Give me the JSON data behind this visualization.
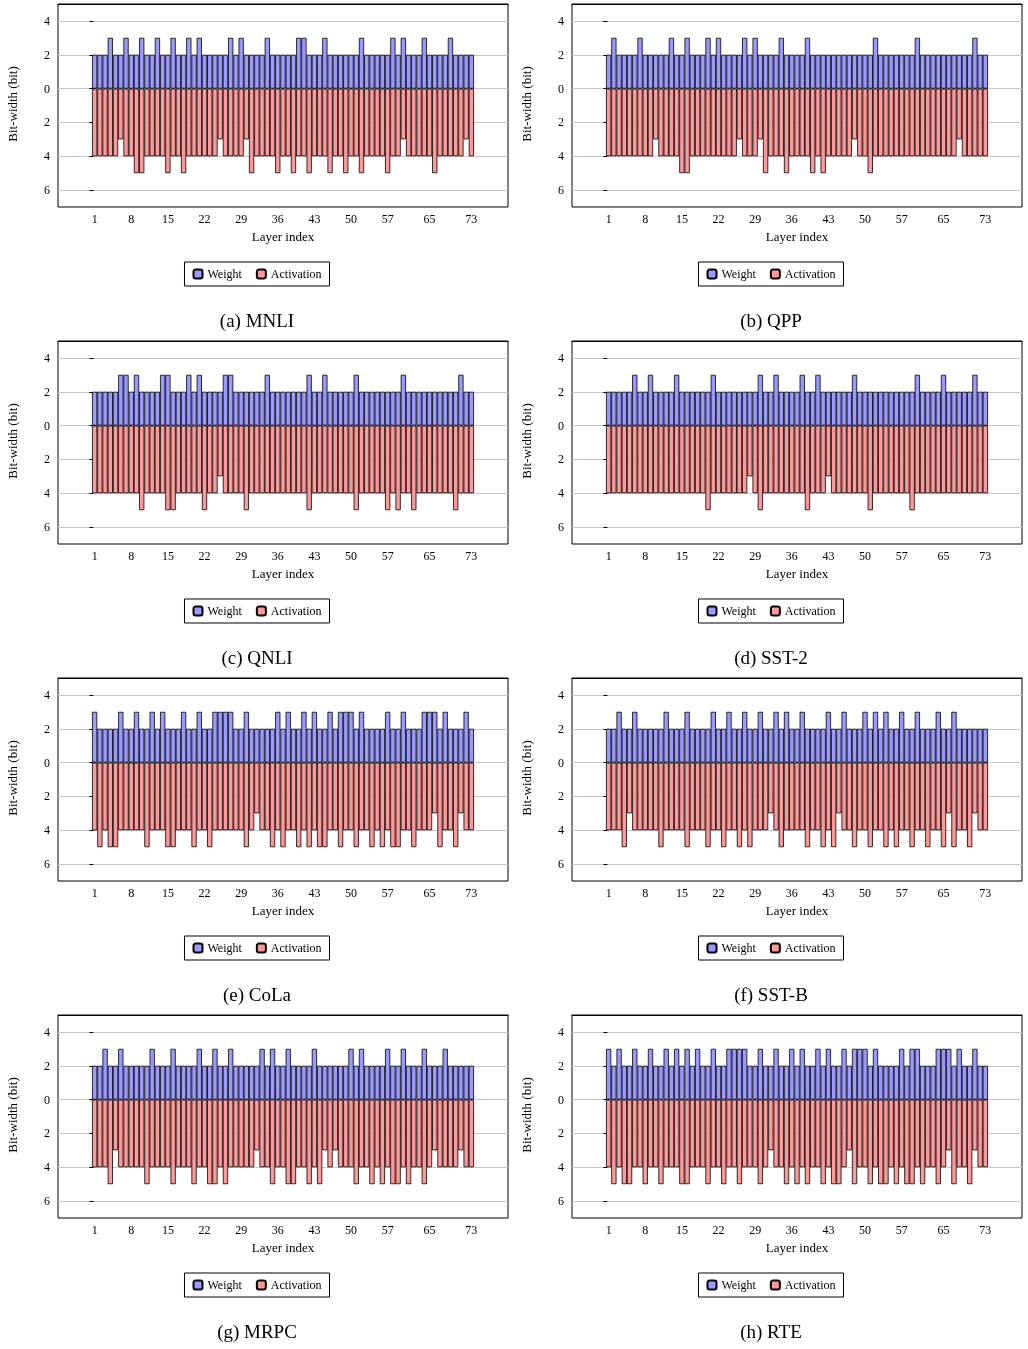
{
  "chart_data": [
    {
      "type": "bar",
      "stacked": true,
      "title": "(a) MNLI",
      "xlabel": "Layer index",
      "ylabel": "Bit-width (bit)",
      "grid": "y",
      "legend": "bottom",
      "x": [
        1,
        2,
        3,
        4,
        5,
        6,
        7,
        8,
        9,
        10,
        11,
        12,
        13,
        14,
        15,
        16,
        17,
        18,
        19,
        20,
        21,
        22,
        23,
        24,
        25,
        26,
        27,
        28,
        29,
        30,
        31,
        32,
        33,
        34,
        35,
        36,
        37,
        38,
        39,
        40,
        41,
        42,
        43,
        44,
        45,
        46,
        47,
        48,
        49,
        50,
        51,
        52,
        53,
        54,
        55,
        56,
        57,
        58,
        59,
        60,
        61,
        62,
        63,
        64,
        65,
        66,
        67,
        68,
        69,
        70,
        71,
        72,
        73
      ],
      "xlim": [
        -6,
        80
      ],
      "xticks": [
        1,
        8,
        15,
        22,
        29,
        36,
        43,
        50,
        57,
        65,
        73
      ],
      "ylim": [
        -7,
        5
      ],
      "yticks": [
        {
          "value": -6,
          "label": "6"
        },
        {
          "value": -4,
          "label": "4"
        },
        {
          "value": -2,
          "label": "2"
        },
        0,
        2,
        4
      ],
      "series": [
        {
          "name": "Weight",
          "color": "#9999ff",
          "values": [
            2,
            2,
            2,
            3,
            2,
            2,
            3,
            2,
            2,
            3,
            2,
            2,
            3,
            2,
            2,
            3,
            2,
            2,
            3,
            2,
            3,
            2,
            2,
            2,
            2,
            2,
            3,
            2,
            3,
            2,
            2,
            2,
            2,
            3,
            2,
            2,
            2,
            2,
            2,
            3,
            3,
            2,
            2,
            2,
            3,
            2,
            2,
            2,
            2,
            2,
            2,
            3,
            2,
            2,
            2,
            2,
            2,
            3,
            2,
            3,
            2,
            2,
            2,
            3,
            2,
            2,
            2,
            2,
            3,
            2,
            2,
            2,
            2
          ]
        },
        {
          "name": "Activation",
          "color": "#ff9999",
          "values": [
            -4,
            -4,
            -4,
            -4,
            -4,
            -3,
            -4,
            -4,
            -5,
            -5,
            -4,
            -4,
            -4,
            -4,
            -5,
            -4,
            -4,
            -5,
            -4,
            -4,
            -4,
            -4,
            -4,
            -4,
            -3,
            -4,
            -4,
            -4,
            -4,
            -3,
            -5,
            -4,
            -4,
            -4,
            -4,
            -5,
            -4,
            -4,
            -5,
            -4,
            -4,
            -5,
            -4,
            -4,
            -4,
            -5,
            -4,
            -4,
            -5,
            -4,
            -4,
            -5,
            -4,
            -4,
            -4,
            -4,
            -5,
            -4,
            -4,
            -3,
            -4,
            -4,
            -4,
            -4,
            -4,
            -5,
            -4,
            -4,
            -4,
            -4,
            -4,
            -3,
            -4
          ]
        }
      ]
    },
    {
      "type": "bar",
      "stacked": true,
      "title": "(b) QPP",
      "xlabel": "Layer index",
      "ylabel": "Bit-width (bit)",
      "grid": "y",
      "legend": "bottom",
      "x": [
        1,
        2,
        3,
        4,
        5,
        6,
        7,
        8,
        9,
        10,
        11,
        12,
        13,
        14,
        15,
        16,
        17,
        18,
        19,
        20,
        21,
        22,
        23,
        24,
        25,
        26,
        27,
        28,
        29,
        30,
        31,
        32,
        33,
        34,
        35,
        36,
        37,
        38,
        39,
        40,
        41,
        42,
        43,
        44,
        45,
        46,
        47,
        48,
        49,
        50,
        51,
        52,
        53,
        54,
        55,
        56,
        57,
        58,
        59,
        60,
        61,
        62,
        63,
        64,
        65,
        66,
        67,
        68,
        69,
        70,
        71,
        72,
        73
      ],
      "xlim": [
        -6,
        80
      ],
      "xticks": [
        1,
        8,
        15,
        22,
        29,
        36,
        43,
        50,
        57,
        65,
        73
      ],
      "ylim": [
        -7,
        5
      ],
      "yticks": [
        {
          "value": -6,
          "label": "6"
        },
        {
          "value": -4,
          "label": "4"
        },
        {
          "value": -2,
          "label": "2"
        },
        0,
        2,
        4
      ],
      "series": [
        {
          "name": "Weight",
          "color": "#9999ff",
          "values": [
            2,
            3,
            2,
            2,
            2,
            2,
            3,
            2,
            2,
            2,
            2,
            2,
            3,
            2,
            2,
            3,
            2,
            2,
            2,
            3,
            2,
            3,
            2,
            2,
            2,
            2,
            3,
            2,
            3,
            2,
            2,
            2,
            2,
            3,
            2,
            2,
            2,
            2,
            3,
            2,
            2,
            2,
            2,
            2,
            2,
            2,
            2,
            2,
            2,
            2,
            2,
            3,
            2,
            2,
            2,
            2,
            2,
            2,
            2,
            3,
            2,
            2,
            2,
            2,
            2,
            2,
            2,
            2,
            2,
            2,
            3,
            2,
            2
          ]
        },
        {
          "name": "Activation",
          "color": "#ff9999",
          "values": [
            -4,
            -4,
            -4,
            -4,
            -4,
            -4,
            -4,
            -4,
            -4,
            -3,
            -4,
            -4,
            -4,
            -4,
            -5,
            -5,
            -4,
            -4,
            -4,
            -4,
            -4,
            -4,
            -4,
            -4,
            -4,
            -3,
            -4,
            -4,
            -4,
            -3,
            -5,
            -4,
            -4,
            -4,
            -5,
            -4,
            -4,
            -4,
            -4,
            -5,
            -4,
            -5,
            -4,
            -4,
            -4,
            -4,
            -4,
            -3,
            -4,
            -4,
            -5,
            -4,
            -4,
            -4,
            -4,
            -4,
            -4,
            -4,
            -4,
            -4,
            -4,
            -4,
            -4,
            -4,
            -4,
            -4,
            -4,
            -3,
            -4,
            -4,
            -4,
            -4,
            -4
          ]
        }
      ]
    },
    {
      "type": "bar",
      "stacked": true,
      "title": "(c) QNLI",
      "xlabel": "Layer index",
      "ylabel": "Bit-width (bit)",
      "grid": "y",
      "legend": "bottom",
      "x": [
        1,
        2,
        3,
        4,
        5,
        6,
        7,
        8,
        9,
        10,
        11,
        12,
        13,
        14,
        15,
        16,
        17,
        18,
        19,
        20,
        21,
        22,
        23,
        24,
        25,
        26,
        27,
        28,
        29,
        30,
        31,
        32,
        33,
        34,
        35,
        36,
        37,
        38,
        39,
        40,
        41,
        42,
        43,
        44,
        45,
        46,
        47,
        48,
        49,
        50,
        51,
        52,
        53,
        54,
        55,
        56,
        57,
        58,
        59,
        60,
        61,
        62,
        63,
        64,
        65,
        66,
        67,
        68,
        69,
        70,
        71,
        72,
        73
      ],
      "xlim": [
        -6,
        80
      ],
      "xticks": [
        1,
        8,
        15,
        22,
        29,
        36,
        43,
        50,
        57,
        65,
        73
      ],
      "ylim": [
        -7,
        5
      ],
      "yticks": [
        {
          "value": -6,
          "label": "6"
        },
        {
          "value": -4,
          "label": "4"
        },
        {
          "value": -2,
          "label": "2"
        },
        0,
        2,
        4
      ],
      "series": [
        {
          "name": "Weight",
          "color": "#9999ff",
          "values": [
            2,
            2,
            2,
            2,
            2,
            3,
            3,
            2,
            3,
            2,
            2,
            2,
            2,
            3,
            3,
            2,
            2,
            2,
            3,
            2,
            3,
            2,
            2,
            2,
            2,
            3,
            3,
            2,
            2,
            2,
            2,
            2,
            2,
            3,
            2,
            2,
            2,
            2,
            2,
            2,
            2,
            3,
            2,
            2,
            3,
            2,
            2,
            2,
            2,
            2,
            3,
            2,
            2,
            2,
            2,
            2,
            2,
            2,
            2,
            3,
            2,
            2,
            2,
            2,
            2,
            2,
            2,
            2,
            2,
            2,
            3,
            2,
            2
          ]
        },
        {
          "name": "Activation",
          "color": "#ff9999",
          "values": [
            -4,
            -4,
            -4,
            -4,
            -4,
            -4,
            -4,
            -4,
            -4,
            -5,
            -4,
            -4,
            -4,
            -4,
            -5,
            -5,
            -4,
            -4,
            -4,
            -4,
            -4,
            -5,
            -4,
            -4,
            -3,
            -4,
            -4,
            -4,
            -4,
            -5,
            -4,
            -4,
            -4,
            -4,
            -4,
            -4,
            -4,
            -4,
            -4,
            -4,
            -4,
            -5,
            -4,
            -4,
            -4,
            -4,
            -4,
            -4,
            -4,
            -4,
            -5,
            -4,
            -4,
            -4,
            -4,
            -4,
            -5,
            -4,
            -5,
            -4,
            -4,
            -5,
            -4,
            -4,
            -4,
            -4,
            -4,
            -4,
            -4,
            -5,
            -4,
            -4,
            -4
          ]
        }
      ]
    },
    {
      "type": "bar",
      "stacked": true,
      "title": "(d) SST-2",
      "xlabel": "Layer index",
      "ylabel": "Bit-width (bit)",
      "grid": "y",
      "legend": "bottom",
      "x": [
        1,
        2,
        3,
        4,
        5,
        6,
        7,
        8,
        9,
        10,
        11,
        12,
        13,
        14,
        15,
        16,
        17,
        18,
        19,
        20,
        21,
        22,
        23,
        24,
        25,
        26,
        27,
        28,
        29,
        30,
        31,
        32,
        33,
        34,
        35,
        36,
        37,
        38,
        39,
        40,
        41,
        42,
        43,
        44,
        45,
        46,
        47,
        48,
        49,
        50,
        51,
        52,
        53,
        54,
        55,
        56,
        57,
        58,
        59,
        60,
        61,
        62,
        63,
        64,
        65,
        66,
        67,
        68,
        69,
        70,
        71,
        72,
        73
      ],
      "xlim": [
        -6,
        80
      ],
      "xticks": [
        1,
        8,
        15,
        22,
        29,
        36,
        43,
        50,
        57,
        65,
        73
      ],
      "ylim": [
        -7,
        5
      ],
      "yticks": [
        {
          "value": -6,
          "label": "6"
        },
        {
          "value": -4,
          "label": "4"
        },
        {
          "value": -2,
          "label": "2"
        },
        0,
        2,
        4
      ],
      "series": [
        {
          "name": "Weight",
          "color": "#9999ff",
          "values": [
            2,
            2,
            2,
            2,
            2,
            3,
            2,
            2,
            3,
            2,
            2,
            2,
            2,
            3,
            2,
            2,
            2,
            2,
            2,
            2,
            3,
            2,
            2,
            2,
            2,
            2,
            2,
            2,
            2,
            3,
            2,
            2,
            3,
            2,
            2,
            2,
            2,
            3,
            2,
            2,
            3,
            2,
            2,
            2,
            2,
            2,
            2,
            3,
            2,
            2,
            2,
            2,
            2,
            2,
            2,
            2,
            2,
            2,
            2,
            3,
            2,
            2,
            2,
            2,
            3,
            2,
            2,
            2,
            2,
            2,
            3,
            2,
            2
          ]
        },
        {
          "name": "Activation",
          "color": "#ff9999",
          "values": [
            -4,
            -4,
            -4,
            -4,
            -4,
            -4,
            -4,
            -4,
            -4,
            -4,
            -4,
            -4,
            -4,
            -4,
            -4,
            -4,
            -4,
            -4,
            -4,
            -5,
            -4,
            -4,
            -4,
            -4,
            -4,
            -4,
            -4,
            -3,
            -4,
            -5,
            -4,
            -4,
            -4,
            -4,
            -4,
            -4,
            -4,
            -4,
            -5,
            -4,
            -4,
            -4,
            -3,
            -4,
            -4,
            -4,
            -4,
            -4,
            -4,
            -4,
            -5,
            -4,
            -4,
            -4,
            -4,
            -4,
            -4,
            -4,
            -5,
            -4,
            -4,
            -4,
            -4,
            -4,
            -4,
            -4,
            -4,
            -4,
            -4,
            -4,
            -4,
            -4,
            -4
          ]
        }
      ]
    },
    {
      "type": "bar",
      "stacked": true,
      "title": "(e) CoLa",
      "xlabel": "Layer index",
      "ylabel": "Bit-width (bit)",
      "grid": "y",
      "legend": "bottom",
      "x": [
        1,
        2,
        3,
        4,
        5,
        6,
        7,
        8,
        9,
        10,
        11,
        12,
        13,
        14,
        15,
        16,
        17,
        18,
        19,
        20,
        21,
        22,
        23,
        24,
        25,
        26,
        27,
        28,
        29,
        30,
        31,
        32,
        33,
        34,
        35,
        36,
        37,
        38,
        39,
        40,
        41,
        42,
        43,
        44,
        45,
        46,
        47,
        48,
        49,
        50,
        51,
        52,
        53,
        54,
        55,
        56,
        57,
        58,
        59,
        60,
        61,
        62,
        63,
        64,
        65,
        66,
        67,
        68,
        69,
        70,
        71,
        72,
        73
      ],
      "xlim": [
        -6,
        80
      ],
      "xticks": [
        1,
        8,
        15,
        22,
        29,
        36,
        43,
        50,
        57,
        65,
        73
      ],
      "ylim": [
        -7,
        5
      ],
      "yticks": [
        {
          "value": -6,
          "label": "6"
        },
        {
          "value": -4,
          "label": "4"
        },
        {
          "value": -2,
          "label": "2"
        },
        0,
        2,
        4
      ],
      "series": [
        {
          "name": "Weight",
          "color": "#9999ff",
          "values": [
            3,
            2,
            2,
            2,
            2,
            3,
            2,
            2,
            3,
            2,
            2,
            3,
            2,
            3,
            2,
            2,
            2,
            3,
            2,
            2,
            3,
            2,
            2,
            3,
            3,
            3,
            3,
            2,
            2,
            3,
            2,
            2,
            2,
            2,
            2,
            3,
            2,
            3,
            2,
            2,
            3,
            2,
            3,
            2,
            2,
            3,
            2,
            3,
            3,
            3,
            2,
            3,
            2,
            2,
            2,
            2,
            3,
            2,
            2,
            3,
            2,
            2,
            2,
            3,
            3,
            3,
            2,
            3,
            2,
            2,
            2,
            3,
            2
          ]
        },
        {
          "name": "Activation",
          "color": "#ff9999",
          "values": [
            -4,
            -5,
            -4,
            -5,
            -5,
            -4,
            -4,
            -4,
            -4,
            -4,
            -5,
            -4,
            -4,
            -4,
            -5,
            -5,
            -4,
            -4,
            -4,
            -5,
            -4,
            -4,
            -5,
            -4,
            -4,
            -4,
            -4,
            -4,
            -4,
            -5,
            -4,
            -3,
            -4,
            -4,
            -5,
            -4,
            -5,
            -4,
            -4,
            -5,
            -4,
            -5,
            -4,
            -5,
            -5,
            -4,
            -4,
            -5,
            -4,
            -4,
            -5,
            -4,
            -4,
            -5,
            -4,
            -5,
            -4,
            -5,
            -5,
            -4,
            -4,
            -5,
            -4,
            -4,
            -4,
            -3,
            -5,
            -4,
            -4,
            -5,
            -3,
            -4,
            -4
          ]
        }
      ]
    },
    {
      "type": "bar",
      "stacked": true,
      "title": "(f) SST-B",
      "xlabel": "Layer index",
      "ylabel": "Bit-width (bit)",
      "grid": "y",
      "legend": "bottom",
      "x": [
        1,
        2,
        3,
        4,
        5,
        6,
        7,
        8,
        9,
        10,
        11,
        12,
        13,
        14,
        15,
        16,
        17,
        18,
        19,
        20,
        21,
        22,
        23,
        24,
        25,
        26,
        27,
        28,
        29,
        30,
        31,
        32,
        33,
        34,
        35,
        36,
        37,
        38,
        39,
        40,
        41,
        42,
        43,
        44,
        45,
        46,
        47,
        48,
        49,
        50,
        51,
        52,
        53,
        54,
        55,
        56,
        57,
        58,
        59,
        60,
        61,
        62,
        63,
        64,
        65,
        66,
        67,
        68,
        69,
        70,
        71,
        72,
        73
      ],
      "xlim": [
        -6,
        80
      ],
      "xticks": [
        1,
        8,
        15,
        22,
        29,
        36,
        43,
        50,
        57,
        65,
        73
      ],
      "ylim": [
        -7,
        5
      ],
      "yticks": [
        {
          "value": -6,
          "label": "6"
        },
        {
          "value": -4,
          "label": "4"
        },
        {
          "value": -2,
          "label": "2"
        },
        0,
        2,
        4
      ],
      "series": [
        {
          "name": "Weight",
          "color": "#9999ff",
          "values": [
            2,
            2,
            3,
            2,
            2,
            3,
            2,
            2,
            2,
            2,
            2,
            3,
            2,
            2,
            2,
            3,
            2,
            2,
            2,
            2,
            3,
            2,
            2,
            3,
            2,
            2,
            3,
            2,
            2,
            3,
            2,
            2,
            3,
            2,
            3,
            2,
            2,
            3,
            2,
            2,
            2,
            2,
            3,
            2,
            2,
            3,
            2,
            2,
            2,
            3,
            2,
            3,
            2,
            3,
            2,
            2,
            3,
            2,
            2,
            3,
            2,
            2,
            2,
            3,
            2,
            2,
            3,
            2,
            2,
            2,
            2,
            2,
            2
          ]
        },
        {
          "name": "Activation",
          "color": "#ff9999",
          "values": [
            -4,
            -4,
            -4,
            -5,
            -3,
            -4,
            -4,
            -4,
            -4,
            -4,
            -5,
            -4,
            -4,
            -4,
            -4,
            -5,
            -4,
            -4,
            -4,
            -5,
            -4,
            -4,
            -5,
            -4,
            -4,
            -5,
            -4,
            -5,
            -4,
            -4,
            -4,
            -3,
            -4,
            -5,
            -4,
            -4,
            -4,
            -4,
            -5,
            -4,
            -4,
            -5,
            -4,
            -5,
            -3,
            -4,
            -4,
            -5,
            -4,
            -4,
            -5,
            -4,
            -4,
            -5,
            -4,
            -5,
            -4,
            -4,
            -5,
            -4,
            -4,
            -5,
            -4,
            -4,
            -5,
            -3,
            -5,
            -4,
            -4,
            -5,
            -3,
            -4,
            -4
          ]
        }
      ]
    },
    {
      "type": "bar",
      "stacked": true,
      "title": "(g) MRPC",
      "xlabel": "Layer index",
      "ylabel": "Bit-width (bit)",
      "grid": "y",
      "legend": "bottom",
      "x": [
        1,
        2,
        3,
        4,
        5,
        6,
        7,
        8,
        9,
        10,
        11,
        12,
        13,
        14,
        15,
        16,
        17,
        18,
        19,
        20,
        21,
        22,
        23,
        24,
        25,
        26,
        27,
        28,
        29,
        30,
        31,
        32,
        33,
        34,
        35,
        36,
        37,
        38,
        39,
        40,
        41,
        42,
        43,
        44,
        45,
        46,
        47,
        48,
        49,
        50,
        51,
        52,
        53,
        54,
        55,
        56,
        57,
        58,
        59,
        60,
        61,
        62,
        63,
        64,
        65,
        66,
        67,
        68,
        69,
        70,
        71,
        72,
        73
      ],
      "xlim": [
        -6,
        80
      ],
      "xticks": [
        1,
        8,
        15,
        22,
        29,
        36,
        43,
        50,
        57,
        65,
        73
      ],
      "ylim": [
        -7,
        5
      ],
      "yticks": [
        {
          "value": -6,
          "label": "6"
        },
        {
          "value": -4,
          "label": "4"
        },
        {
          "value": -2,
          "label": "2"
        },
        0,
        2,
        4
      ],
      "series": [
        {
          "name": "Weight",
          "color": "#9999ff",
          "values": [
            2,
            2,
            3,
            2,
            2,
            3,
            2,
            2,
            2,
            2,
            2,
            3,
            2,
            2,
            2,
            3,
            2,
            2,
            2,
            2,
            3,
            2,
            2,
            3,
            2,
            2,
            3,
            2,
            2,
            2,
            2,
            2,
            3,
            2,
            3,
            2,
            2,
            3,
            2,
            2,
            2,
            2,
            3,
            2,
            2,
            2,
            2,
            2,
            2,
            3,
            2,
            3,
            2,
            2,
            2,
            2,
            3,
            2,
            2,
            3,
            2,
            2,
            2,
            3,
            2,
            2,
            2,
            3,
            2,
            2,
            2,
            2,
            2
          ]
        },
        {
          "name": "Activation",
          "color": "#ff9999",
          "values": [
            -4,
            -4,
            -4,
            -5,
            -3,
            -4,
            -4,
            -4,
            -4,
            -4,
            -5,
            -4,
            -4,
            -4,
            -4,
            -5,
            -4,
            -4,
            -4,
            -5,
            -4,
            -4,
            -5,
            -5,
            -4,
            -5,
            -4,
            -4,
            -4,
            -4,
            -4,
            -3,
            -4,
            -4,
            -5,
            -4,
            -4,
            -5,
            -5,
            -4,
            -4,
            -5,
            -4,
            -5,
            -3,
            -4,
            -3,
            -4,
            -4,
            -4,
            -5,
            -4,
            -4,
            -5,
            -4,
            -5,
            -4,
            -5,
            -5,
            -4,
            -5,
            -4,
            -4,
            -5,
            -4,
            -3,
            -4,
            -4,
            -4,
            -4,
            -3,
            -4,
            -4
          ]
        }
      ]
    },
    {
      "type": "bar",
      "stacked": true,
      "title": "(h) RTE",
      "xlabel": "Layer index",
      "ylabel": "Bit-width (bit)",
      "grid": "y",
      "legend": "bottom",
      "x": [
        1,
        2,
        3,
        4,
        5,
        6,
        7,
        8,
        9,
        10,
        11,
        12,
        13,
        14,
        15,
        16,
        17,
        18,
        19,
        20,
        21,
        22,
        23,
        24,
        25,
        26,
        27,
        28,
        29,
        30,
        31,
        32,
        33,
        34,
        35,
        36,
        37,
        38,
        39,
        40,
        41,
        42,
        43,
        44,
        45,
        46,
        47,
        48,
        49,
        50,
        51,
        52,
        53,
        54,
        55,
        56,
        57,
        58,
        59,
        60,
        61,
        62,
        63,
        64,
        65,
        66,
        67,
        68,
        69,
        70,
        71,
        72,
        73
      ],
      "xlim": [
        -6,
        80
      ],
      "xticks": [
        1,
        8,
        15,
        22,
        29,
        36,
        43,
        50,
        57,
        65,
        73
      ],
      "ylim": [
        -7,
        5
      ],
      "yticks": [
        {
          "value": -6,
          "label": "6"
        },
        {
          "value": -4,
          "label": "4"
        },
        {
          "value": -2,
          "label": "2"
        },
        0,
        2,
        4
      ],
      "series": [
        {
          "name": "Weight",
          "color": "#9999ff",
          "values": [
            3,
            2,
            3,
            2,
            2,
            3,
            2,
            2,
            3,
            2,
            2,
            3,
            2,
            3,
            2,
            3,
            2,
            3,
            2,
            2,
            3,
            2,
            2,
            3,
            3,
            3,
            3,
            2,
            2,
            3,
            2,
            2,
            3,
            2,
            2,
            3,
            2,
            3,
            2,
            2,
            3,
            2,
            3,
            2,
            2,
            3,
            2,
            3,
            3,
            3,
            2,
            3,
            2,
            2,
            2,
            2,
            3,
            2,
            3,
            3,
            2,
            2,
            2,
            3,
            3,
            3,
            2,
            3,
            2,
            2,
            3,
            2,
            2
          ]
        },
        {
          "name": "Activation",
          "color": "#ff9999",
          "values": [
            -4,
            -5,
            -4,
            -5,
            -5,
            -4,
            -4,
            -5,
            -4,
            -4,
            -5,
            -4,
            -4,
            -4,
            -5,
            -5,
            -4,
            -4,
            -4,
            -5,
            -4,
            -4,
            -5,
            -4,
            -4,
            -5,
            -4,
            -4,
            -4,
            -5,
            -4,
            -3,
            -4,
            -4,
            -5,
            -4,
            -5,
            -4,
            -5,
            -4,
            -4,
            -5,
            -4,
            -5,
            -5,
            -4,
            -3,
            -5,
            -4,
            -4,
            -5,
            -4,
            -5,
            -5,
            -4,
            -5,
            -4,
            -5,
            -5,
            -4,
            -5,
            -4,
            -4,
            -5,
            -4,
            -3,
            -5,
            -4,
            -4,
            -5,
            -3,
            -4,
            -4
          ]
        }
      ]
    }
  ]
}
